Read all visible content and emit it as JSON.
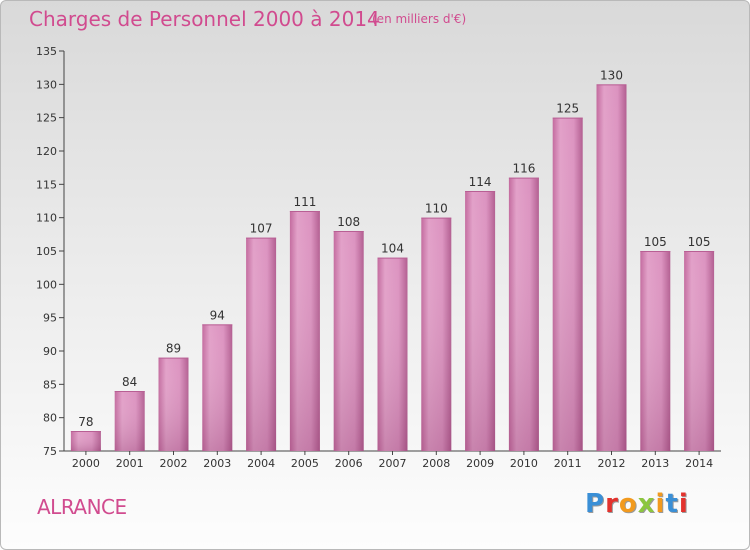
{
  "chart_data": {
    "type": "bar",
    "title": "Charges de Personnel 2000 à 2014",
    "subtitle": "(en milliers d'€)",
    "categories": [
      "2000",
      "2001",
      "2002",
      "2003",
      "2004",
      "2005",
      "2006",
      "2007",
      "2008",
      "2009",
      "2010",
      "2011",
      "2012",
      "2013",
      "2014"
    ],
    "values": [
      78,
      84,
      89,
      94,
      107,
      111,
      108,
      104,
      110,
      114,
      116,
      125,
      130,
      105,
      105
    ],
    "ylim": [
      75,
      135
    ],
    "yticks": [
      75,
      80,
      85,
      90,
      95,
      100,
      105,
      110,
      115,
      120,
      125,
      130,
      135
    ],
    "grid": false,
    "data_labels": true,
    "bar_color": "#d98ab8"
  },
  "footer": {
    "commune": "ALRANCE",
    "logo": "Proxiti"
  },
  "colors": {
    "title": "#d14b8f",
    "axis": "#444444",
    "logo_letters": [
      "#3a8fd6",
      "#e3322d",
      "#f29a1e",
      "#8cc63f",
      "#f29a1e",
      "#3a8fd6",
      "#e3322d"
    ]
  }
}
